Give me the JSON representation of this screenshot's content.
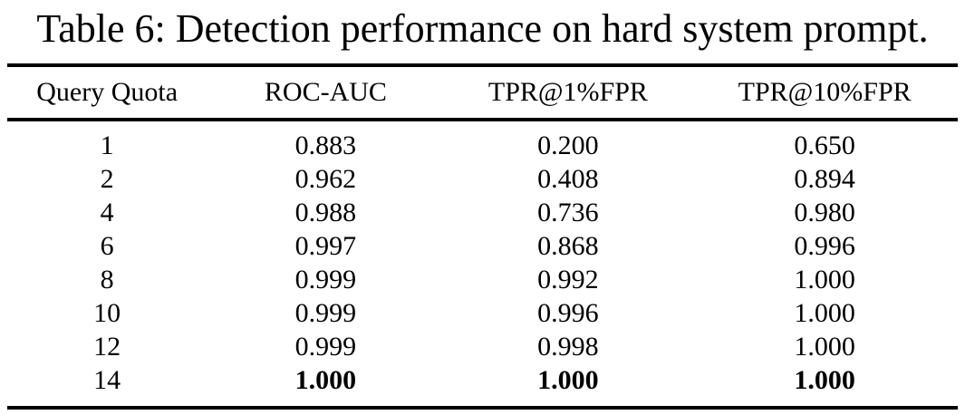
{
  "title": "Table 6: Detection performance on hard system prompt.",
  "chart_data": {
    "type": "table",
    "title": "Table 6: Detection performance on hard system prompt.",
    "columns": [
      "Query Quota",
      "ROC-AUC",
      "TPR@1%FPR",
      "TPR@10%FPR"
    ],
    "rows": [
      {
        "cells": [
          "1",
          "0.883",
          "0.200",
          "0.650"
        ],
        "bold": false
      },
      {
        "cells": [
          "2",
          "0.962",
          "0.408",
          "0.894"
        ],
        "bold": false
      },
      {
        "cells": [
          "4",
          "0.988",
          "0.736",
          "0.980"
        ],
        "bold": false
      },
      {
        "cells": [
          "6",
          "0.997",
          "0.868",
          "0.996"
        ],
        "bold": false
      },
      {
        "cells": [
          "8",
          "0.999",
          "0.992",
          "1.000"
        ],
        "bold": false
      },
      {
        "cells": [
          "10",
          "0.999",
          "0.996",
          "1.000"
        ],
        "bold": false
      },
      {
        "cells": [
          "12",
          "0.999",
          "0.998",
          "1.000"
        ],
        "bold": false
      },
      {
        "cells": [
          "14",
          "1.000",
          "1.000",
          "1.000"
        ],
        "bold": true
      }
    ],
    "text_color": "#000000",
    "rule_color": "#000000",
    "notes": "bold flag applies to metric value cells of that row"
  }
}
